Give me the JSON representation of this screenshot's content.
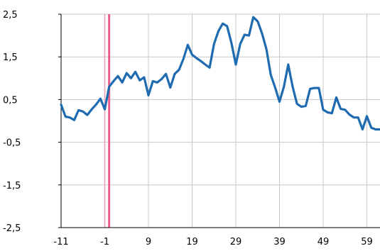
{
  "chart_data": {
    "type": "line",
    "xlim": [
      -11,
      62
    ],
    "ylim": [
      -2.5,
      2.5
    ],
    "x_ticks": [
      -11,
      -1,
      9,
      19,
      29,
      39,
      49,
      59
    ],
    "x_tick_labels": [
      "-11",
      "-1",
      "9",
      "19",
      "29",
      "39",
      "49",
      "59"
    ],
    "y_ticks": [
      -2.5,
      -1.5,
      -0.5,
      0.5,
      1.5,
      2.5
    ],
    "y_tick_labels": [
      "-2,5",
      "-1,5",
      "-0,5",
      "0,5",
      "1,5",
      "2,5"
    ],
    "grid": true,
    "line_color": "#1f6bb0",
    "reference_lines": [
      {
        "x": -1,
        "color": "#e8a0b4"
      },
      {
        "x": 0,
        "color": "#e8608a"
      }
    ],
    "series": [
      {
        "x": [
          -11,
          -10,
          -9,
          -8,
          -7,
          -6,
          -5,
          -4,
          -3,
          -2,
          -1,
          0,
          1,
          2,
          3,
          4,
          5,
          6,
          7,
          8,
          9,
          10,
          11,
          12,
          13,
          14,
          15,
          16,
          17,
          18,
          19,
          20,
          21,
          22,
          23,
          24,
          25,
          26,
          27,
          28,
          29,
          30,
          31,
          32,
          33,
          34,
          35,
          36,
          37,
          38,
          39,
          40,
          41,
          42,
          43,
          44,
          45,
          46,
          47,
          48,
          49,
          50,
          51,
          52,
          53,
          54,
          55,
          56,
          57,
          58,
          59,
          60,
          61,
          62
        ],
        "y": [
          0.38,
          0.1,
          0.08,
          0.02,
          0.25,
          0.22,
          0.14,
          0.27,
          0.38,
          0.52,
          0.27,
          0.8,
          0.93,
          1.05,
          0.9,
          1.12,
          1.0,
          1.15,
          0.95,
          1.02,
          0.6,
          0.93,
          0.9,
          0.98,
          1.1,
          0.78,
          1.1,
          1.2,
          1.45,
          1.78,
          1.55,
          1.47,
          1.4,
          1.32,
          1.25,
          1.8,
          2.1,
          2.28,
          2.22,
          1.82,
          1.32,
          1.8,
          2.02,
          2.0,
          2.43,
          2.33,
          2.05,
          1.68,
          1.08,
          0.78,
          0.45,
          0.8,
          1.32,
          0.8,
          0.4,
          0.33,
          0.35,
          0.75,
          0.77,
          0.77,
          0.26,
          0.2,
          0.18,
          0.55,
          0.28,
          0.26,
          0.15,
          0.08,
          0.08,
          -0.2,
          0.11,
          -0.16,
          -0.2,
          -0.2
        ]
      }
    ]
  }
}
